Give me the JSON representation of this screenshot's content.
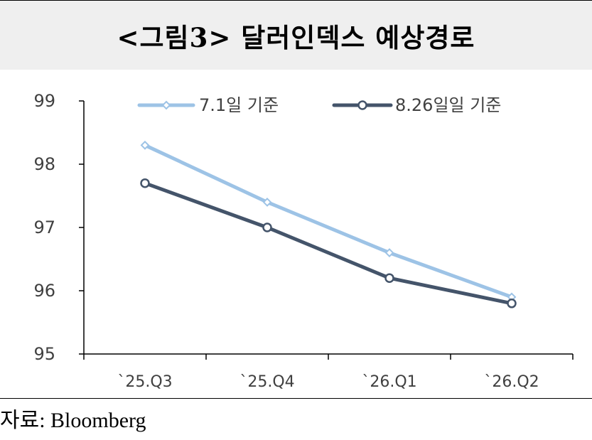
{
  "title": "<그림3> 달러인덱스 예상경로",
  "source": "자료: Bloomberg",
  "colors": {
    "series_light": "#9dc3e6",
    "series_dark": "#44546a",
    "axis": "#000000",
    "header_bg": "#efefef"
  },
  "chart_data": {
    "type": "line",
    "categories": [
      "`25.Q3",
      "`25.Q4",
      "`26.Q1",
      "`26.Q2"
    ],
    "ylim": [
      95,
      99
    ],
    "yticks": [
      95,
      96,
      97,
      98,
      99
    ],
    "grid": false,
    "legend_position": "top",
    "series": [
      {
        "name": "7.1일 기준",
        "values": [
          98.3,
          97.4,
          96.6,
          95.9
        ],
        "color": "#9dc3e6",
        "marker": "diamond"
      },
      {
        "name": "8.26일일 기준",
        "values": [
          97.7,
          97.0,
          96.2,
          95.8
        ],
        "color": "#44546a",
        "marker": "circle"
      }
    ]
  }
}
